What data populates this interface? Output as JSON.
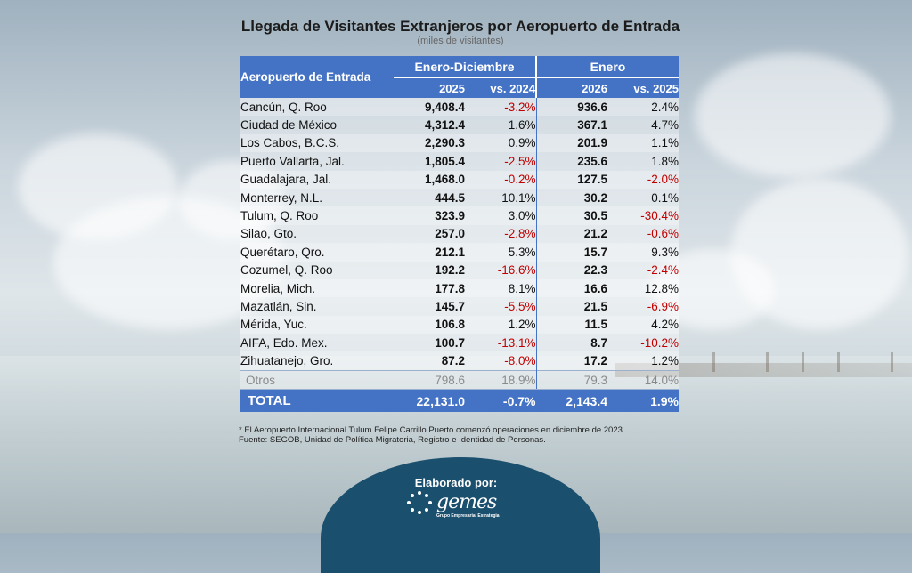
{
  "header": {
    "title": "Llegada de Visitantes Extranjeros por Aeropuerto de Entrada",
    "subtitle": "(miles de visitantes)"
  },
  "table": {
    "col_airport": "Aeropuerto de Entrada",
    "group1": "Enero-Diciembre",
    "group2": "Enero",
    "g1_year": "2025",
    "g1_vs": "vs. 2024",
    "g2_year": "2026",
    "g2_vs": "vs. 2025",
    "rows": [
      {
        "name": "Cancún, Q. Roo",
        "v1": "9,408.4",
        "p1": "-3.2%",
        "v2": "936.6",
        "p2": "2.4%"
      },
      {
        "name": "Ciudad de México",
        "v1": "4,312.4",
        "p1": "1.6%",
        "v2": "367.1",
        "p2": "4.7%"
      },
      {
        "name": "Los Cabos, B.C.S.",
        "v1": "2,290.3",
        "p1": "0.9%",
        "v2": "201.9",
        "p2": "1.1%"
      },
      {
        "name": "Puerto Vallarta, Jal.",
        "v1": "1,805.4",
        "p1": "-2.5%",
        "v2": "235.6",
        "p2": "1.8%"
      },
      {
        "name": "Guadalajara, Jal.",
        "v1": "1,468.0",
        "p1": "-0.2%",
        "v2": "127.5",
        "p2": "-2.0%"
      },
      {
        "name": "Monterrey, N.L.",
        "v1": "444.5",
        "p1": "10.1%",
        "v2": "30.2",
        "p2": "0.1%"
      },
      {
        "name": "Tulum, Q. Roo",
        "v1": "323.9",
        "p1": "3.0%",
        "v2": "30.5",
        "p2": "-30.4%"
      },
      {
        "name": "Silao, Gto.",
        "v1": "257.0",
        "p1": "-2.8%",
        "v2": "21.2",
        "p2": "-0.6%"
      },
      {
        "name": "Querétaro, Qro.",
        "v1": "212.1",
        "p1": "5.3%",
        "v2": "15.7",
        "p2": "9.3%"
      },
      {
        "name": "Cozumel, Q. Roo",
        "v1": "192.2",
        "p1": "-16.6%",
        "v2": "22.3",
        "p2": "-2.4%"
      },
      {
        "name": "Morelia, Mich.",
        "v1": "177.8",
        "p1": "8.1%",
        "v2": "16.6",
        "p2": "12.8%"
      },
      {
        "name": "Mazatlán, Sin.",
        "v1": "145.7",
        "p1": "-5.5%",
        "v2": "21.5",
        "p2": "-6.9%"
      },
      {
        "name": "Mérida, Yuc.",
        "v1": "106.8",
        "p1": "1.2%",
        "v2": "11.5",
        "p2": "4.2%"
      },
      {
        "name": "AIFA, Edo. Mex.",
        "v1": "100.7",
        "p1": "-13.1%",
        "v2": "8.7",
        "p2": "-10.2%"
      },
      {
        "name": "Zihuatanejo, Gro.",
        "v1": "87.2",
        "p1": "-8.0%",
        "v2": "17.2",
        "p2": "1.2%"
      }
    ],
    "otros": {
      "name": "Otros",
      "v1": "798.6",
      "p1": "18.9%",
      "v2": "79.3",
      "p2": "14.0%"
    },
    "total": {
      "name": "TOTAL",
      "v1": "22,131.0",
      "p1": "-0.7%",
      "v2": "2,143.4",
      "p2": "1.9%"
    }
  },
  "notes": {
    "line1": "* El Aeropuerto Internacional Tulum Felipe Carrillo Puerto comenzó operaciones en diciembre de 2023.",
    "line2": "Fuente: SEGOB, Unidad de Política Migratoria, Registro e Identidad de Personas."
  },
  "footer": {
    "elaborado": "Elaborado por:",
    "logo_text": "gemes",
    "logo_sub": "Grupo Empresarial Estrategia"
  },
  "colors": {
    "header_blue": "#4472c4",
    "negative_red": "#c00000",
    "badge_navy": "#1b4f6e"
  }
}
